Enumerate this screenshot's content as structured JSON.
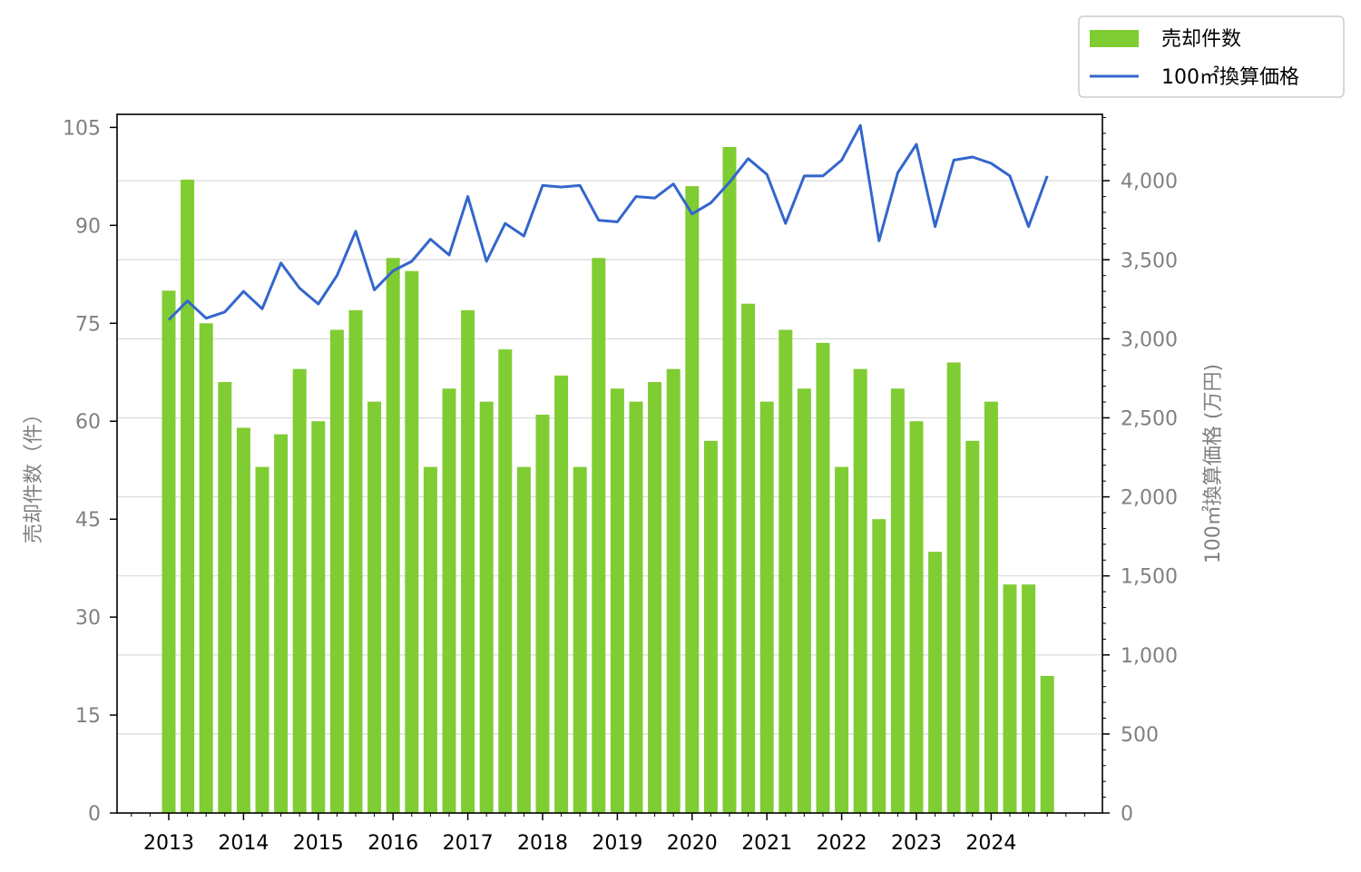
{
  "colors": {
    "bar": "#80cc33",
    "line": "#3366cc",
    "grid": "#d9d9d9",
    "axis_text": "#808080"
  },
  "chart_data": {
    "type": "bar",
    "ylabel_left": "売却件数（件）",
    "ylabel_right": "100㎡換算価格 (万円)",
    "ylim_left": [
      0,
      107
    ],
    "ylim_right": [
      0,
      4420
    ],
    "left_ticks": [
      0,
      15,
      30,
      45,
      60,
      75,
      90,
      105
    ],
    "right_ticks": [
      0,
      500,
      1000,
      1500,
      2000,
      2500,
      3000,
      3500,
      4000
    ],
    "right_tick_labels": [
      "0",
      "500",
      "1,000",
      "1,500",
      "2,000",
      "2,500",
      "3,000",
      "3,500",
      "4,000"
    ],
    "x_ticks": [
      "2013",
      "2014",
      "2015",
      "2016",
      "2017",
      "2018",
      "2019",
      "2020",
      "2021",
      "2022",
      "2023",
      "2024"
    ],
    "grid": "horizontal (right axis)",
    "legend": {
      "placement": "top-right, outside plot",
      "items": [
        "売却件数",
        "100㎡換算価格"
      ]
    },
    "series": [
      {
        "name": "売却件数",
        "type": "bar",
        "axis": "left",
        "values": [
          80,
          97,
          75,
          66,
          59,
          53,
          58,
          68,
          60,
          74,
          77,
          63,
          85,
          83,
          53,
          65,
          77,
          63,
          71,
          53,
          61,
          67,
          53,
          85,
          65,
          63,
          66,
          68,
          96,
          57,
          102,
          78,
          63,
          74,
          65,
          72,
          53,
          68,
          45,
          65,
          60,
          40,
          69,
          57,
          63,
          35,
          35,
          21
        ]
      },
      {
        "name": "100㎡換算価格",
        "type": "line",
        "axis": "right",
        "values": [
          3120,
          3240,
          3130,
          3170,
          3300,
          3190,
          3480,
          3320,
          3220,
          3400,
          3680,
          3310,
          3430,
          3490,
          3630,
          3530,
          3900,
          3490,
          3730,
          3650,
          3970,
          3960,
          3970,
          3750,
          3740,
          3900,
          3890,
          3980,
          3790,
          3860,
          3990,
          4140,
          4040,
          3730,
          4030,
          4030,
          4130,
          4350,
          3620,
          4050,
          4230,
          3710,
          4130,
          4150,
          4110,
          4030,
          3710,
          4030
        ]
      }
    ]
  }
}
